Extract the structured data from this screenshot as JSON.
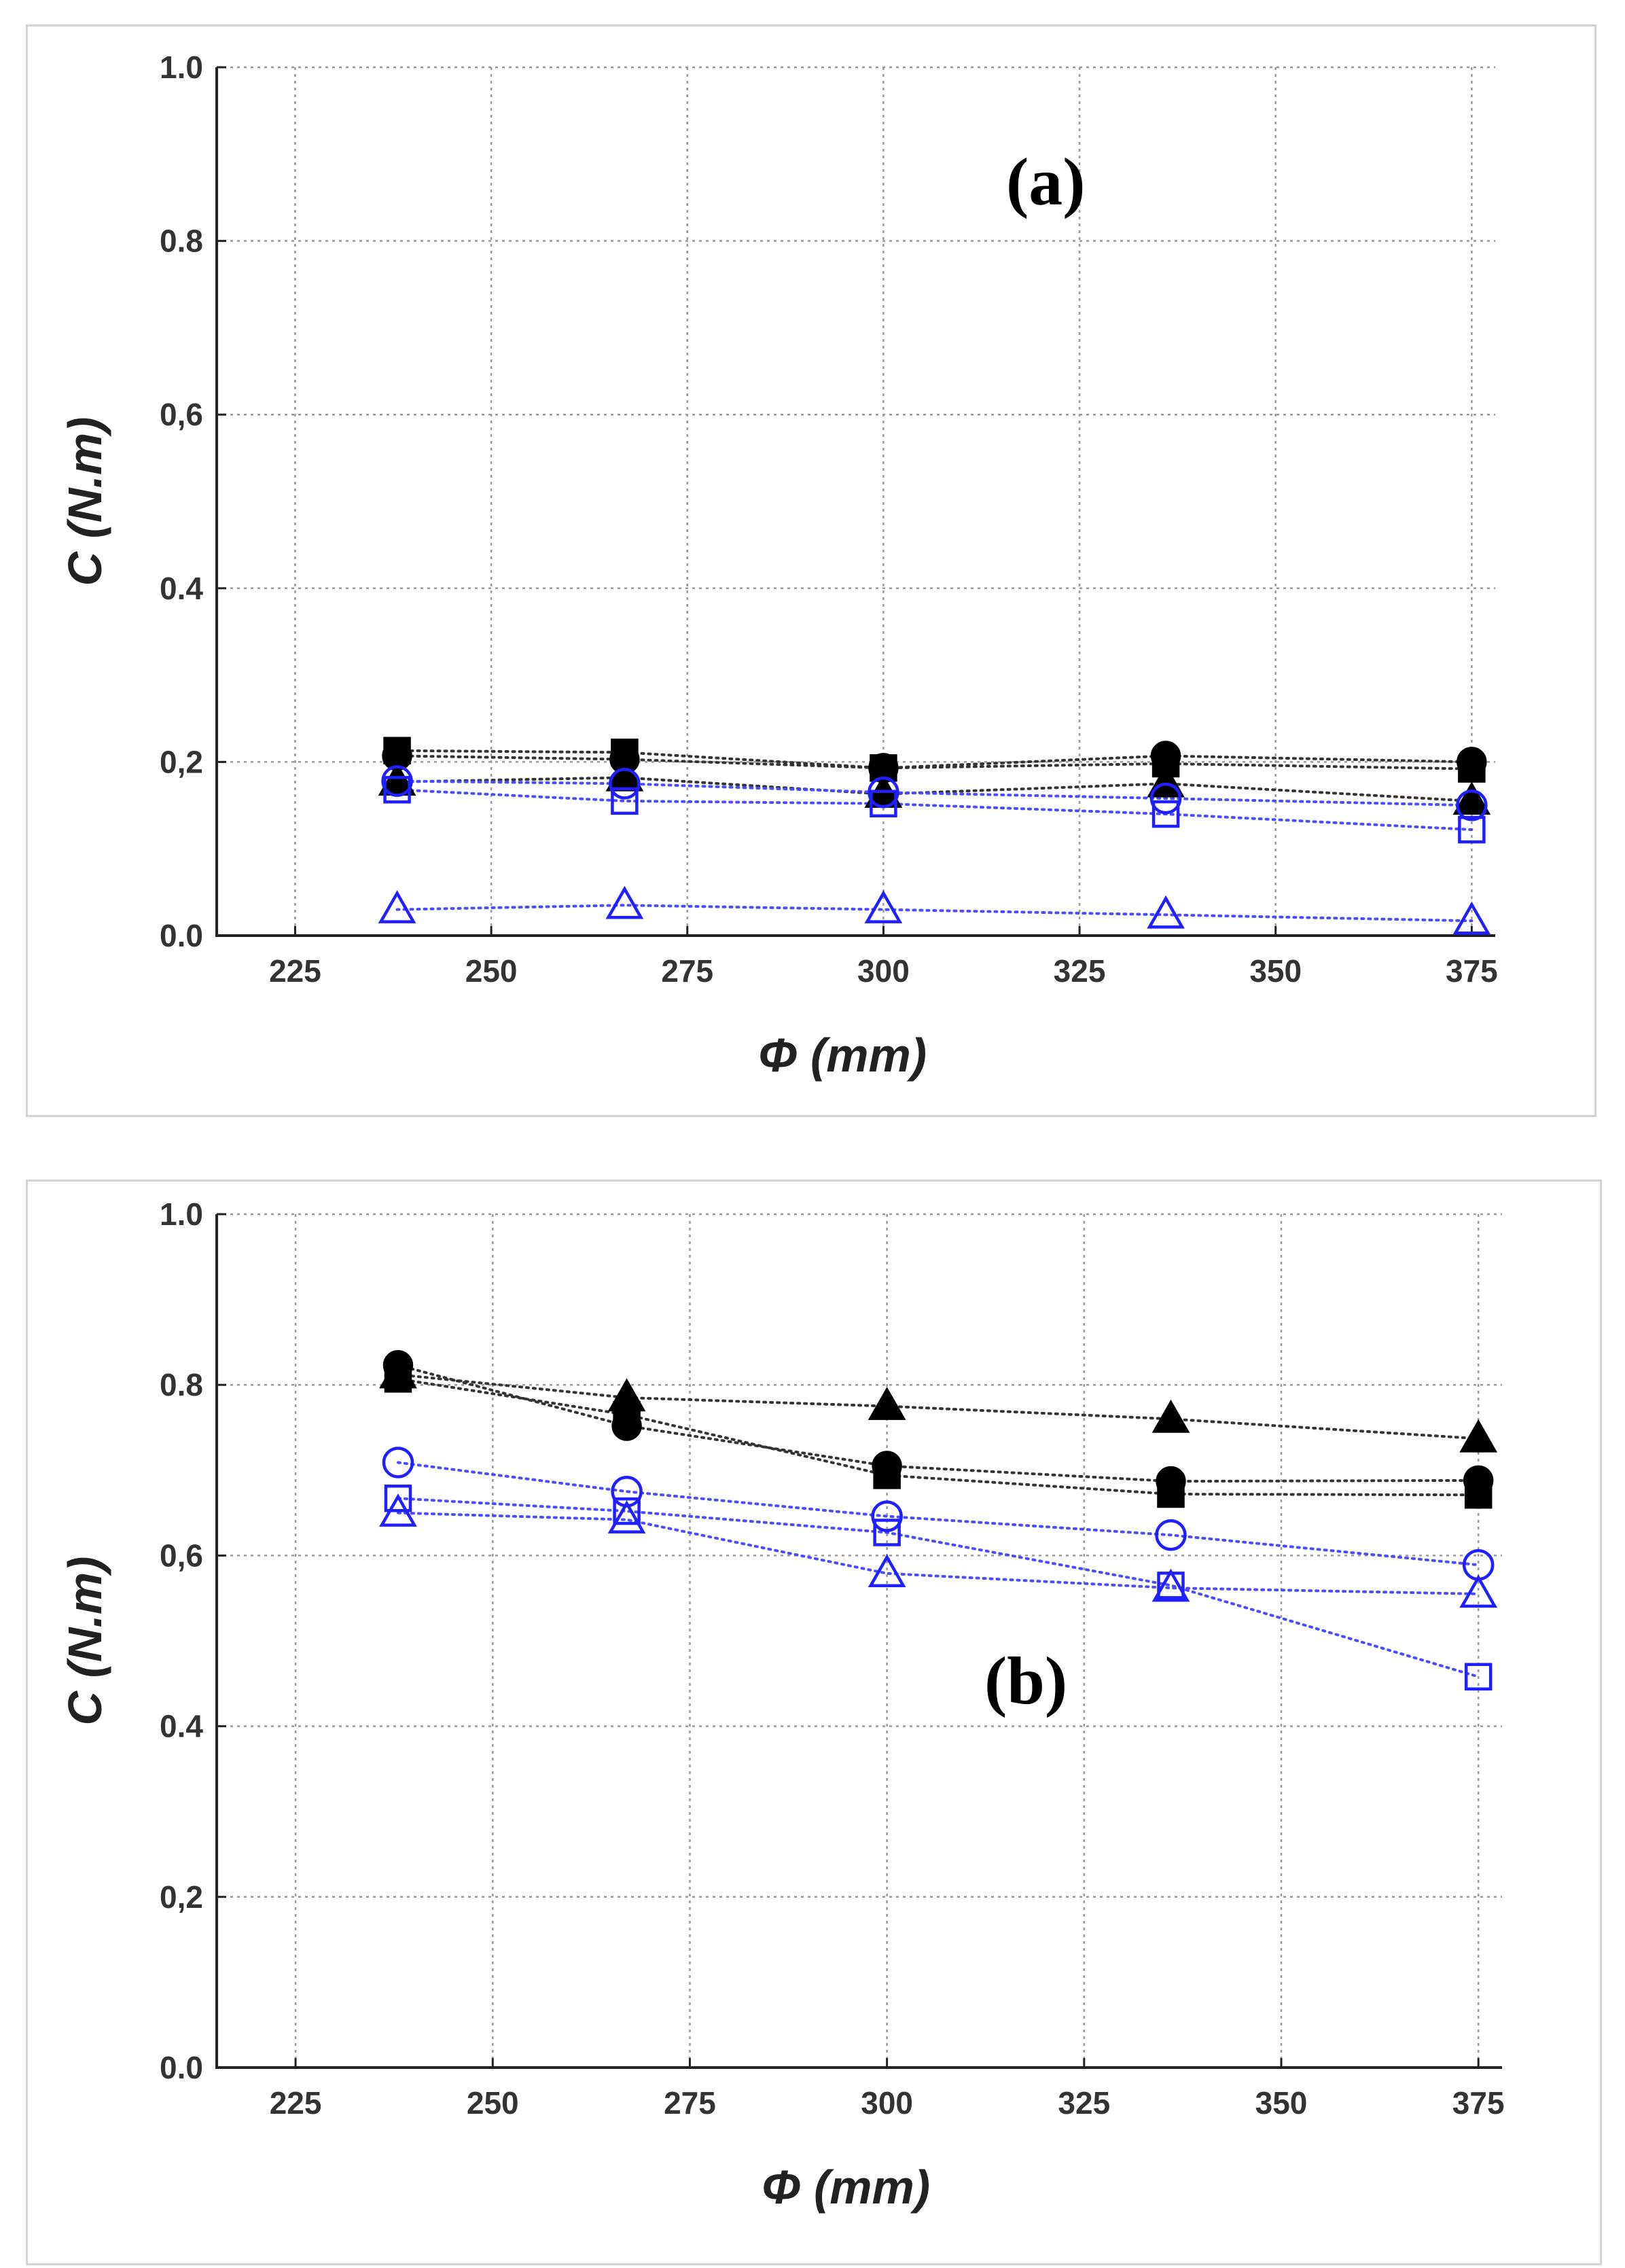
{
  "chart_data": [
    {
      "type": "scatter",
      "label": "(a)",
      "xlabel": "Φ (mm)",
      "ylabel": "C (N.m)",
      "xlim": [
        215,
        378
      ],
      "ylim": [
        0.0,
        1.0
      ],
      "xticks": [
        225,
        250,
        275,
        300,
        325,
        350,
        375
      ],
      "yticks": [
        "0.0",
        "0,2",
        "0.4",
        "0,6",
        "0.8",
        "1.0"
      ],
      "ytick_values": [
        0.0,
        0.2,
        0.4,
        0.6,
        0.8,
        1.0
      ],
      "grid": true,
      "x": [
        238,
        267,
        300,
        336,
        375
      ],
      "series": [
        {
          "name": "filled square",
          "marker": "square",
          "filled": true,
          "color": "#000000",
          "values": [
            0.213,
            0.211,
            0.193,
            0.198,
            0.192
          ]
        },
        {
          "name": "filled circle",
          "marker": "circle",
          "filled": true,
          "color": "#000000",
          "values": [
            0.207,
            0.203,
            0.193,
            0.207,
            0.2
          ]
        },
        {
          "name": "filled triangle",
          "marker": "triangle",
          "filled": true,
          "color": "#000000",
          "values": [
            0.177,
            0.182,
            0.163,
            0.175,
            0.155
          ]
        },
        {
          "name": "open circle",
          "marker": "circle",
          "filled": false,
          "color": "#1f1fff",
          "values": [
            0.178,
            0.175,
            0.165,
            0.158,
            0.15
          ]
        },
        {
          "name": "open square",
          "marker": "square",
          "filled": false,
          "color": "#1f1fff",
          "values": [
            0.168,
            0.155,
            0.152,
            0.14,
            0.122
          ]
        },
        {
          "name": "open triangle",
          "marker": "triangle",
          "filled": false,
          "color": "#1f1fff",
          "values": [
            0.03,
            0.035,
            0.03,
            0.024,
            0.017
          ]
        }
      ]
    },
    {
      "type": "scatter",
      "label": "(b)",
      "xlabel": "Φ (mm)",
      "ylabel": "C (N.m)",
      "xlim": [
        215,
        378
      ],
      "ylim": [
        0.0,
        1.0
      ],
      "xticks": [
        225,
        250,
        275,
        300,
        325,
        350,
        375
      ],
      "yticks": [
        "0.0",
        "0,2",
        "0.4",
        "0,6",
        "0.8",
        "1.0"
      ],
      "ytick_values": [
        0.0,
        0.2,
        0.4,
        0.6,
        0.8,
        1.0
      ],
      "grid": true,
      "x": [
        238,
        267,
        300,
        336,
        375
      ],
      "series": [
        {
          "name": "filled circle",
          "marker": "circle",
          "filled": true,
          "color": "#000000",
          "values": [
            0.823,
            0.752,
            0.705,
            0.687,
            0.688
          ]
        },
        {
          "name": "filled square",
          "marker": "square",
          "filled": true,
          "color": "#000000",
          "values": [
            0.807,
            0.765,
            0.694,
            0.672,
            0.671
          ]
        },
        {
          "name": "filled triangle",
          "marker": "triangle",
          "filled": true,
          "color": "#000000",
          "values": [
            0.812,
            0.785,
            0.775,
            0.76,
            0.737
          ]
        },
        {
          "name": "open circle",
          "marker": "circle",
          "filled": false,
          "color": "#1f1fff",
          "values": [
            0.709,
            0.675,
            0.646,
            0.624,
            0.589
          ]
        },
        {
          "name": "open square",
          "marker": "square",
          "filled": false,
          "color": "#1f1fff",
          "values": [
            0.667,
            0.652,
            0.627,
            0.565,
            0.458
          ]
        },
        {
          "name": "open triangle",
          "marker": "triangle",
          "filled": false,
          "color": "#1f1fff",
          "values": [
            0.65,
            0.642,
            0.579,
            0.562,
            0.555
          ]
        }
      ]
    }
  ]
}
